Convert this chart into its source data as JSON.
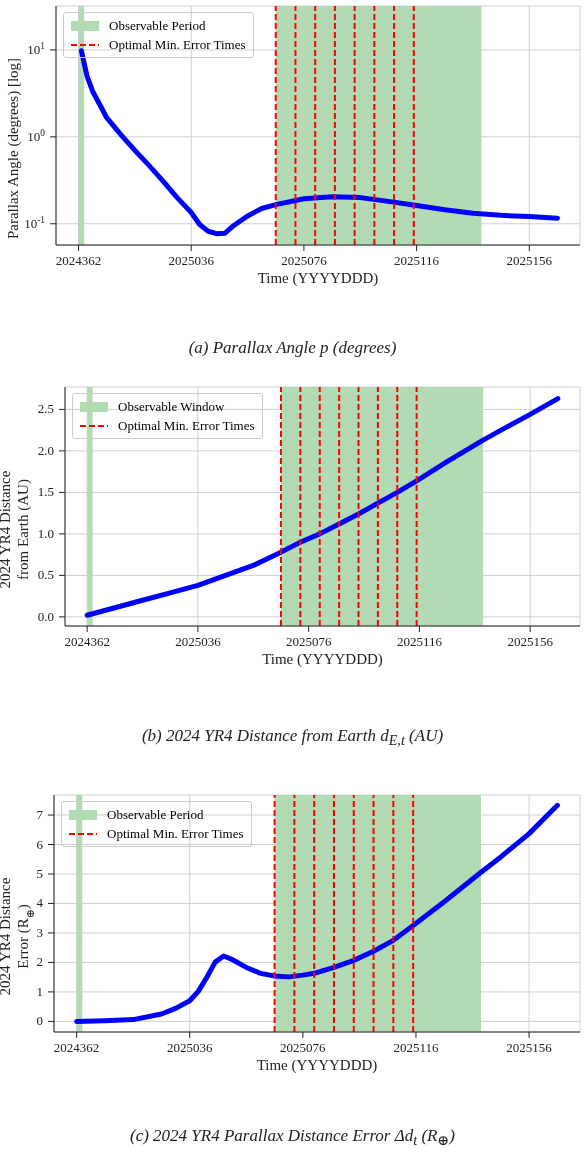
{
  "chart_data": [
    {
      "type": "line",
      "title": "(a) Parallax Angle p (degrees)",
      "xlabel": "Time (YYYYDDD)",
      "ylabel": "Parallax Angle (degrees) [log]",
      "log": true,
      "grid": true,
      "legend": "top left",
      "xlim": [
        "2024-12-19",
        "2025-06-23"
      ],
      "xticks": [
        {
          "value": "2024-12-27",
          "label": "2024362"
        },
        {
          "value": "2025-02-05",
          "label": "2025036"
        },
        {
          "value": "2025-03-17",
          "label": "2025076"
        },
        {
          "value": "2025-04-26",
          "label": "2025116"
        },
        {
          "value": "2025-06-05",
          "label": "2025156"
        }
      ],
      "ylim": [
        0.057,
        32
      ],
      "yticks": [
        {
          "value": 0.1,
          "label": "10$^{-1}$"
        },
        {
          "value": 1,
          "label": "10$^{0}$"
        },
        {
          "value": 10,
          "label": "10$^{1}$"
        }
      ],
      "series": [
        {
          "color": "#0000ff",
          "x": [
            "2024-12-28",
            "2024-12-30",
            "2025-01-01",
            "2025-01-06",
            "2025-01-11",
            "2025-01-16",
            "2025-01-21",
            "2025-01-26",
            "2025-01-31",
            "2025-02-05",
            "2025-02-08",
            "2025-02-11",
            "2025-02-14",
            "2025-02-17",
            "2025-02-20",
            "2025-02-25",
            "2025-03-02",
            "2025-03-07",
            "2025-03-17",
            "2025-03-27",
            "2025-04-06",
            "2025-04-16",
            "2025-04-26",
            "2025-05-06",
            "2025-05-16",
            "2025-05-26",
            "2025-06-05",
            "2025-06-15"
          ],
          "values": [
            9.8,
            5.0,
            3.35,
            1.66,
            1.06,
            0.7,
            0.47,
            0.31,
            0.2,
            0.135,
            0.098,
            0.082,
            0.077,
            0.078,
            0.095,
            0.123,
            0.15,
            0.166,
            0.194,
            0.204,
            0.2,
            0.181,
            0.162,
            0.145,
            0.132,
            0.125,
            0.121,
            0.116
          ]
        }
      ],
      "bands": [
        {
          "axis": "x",
          "from": "2024-12-27",
          "to": "2024-12-29",
          "label": "Observable Period",
          "color": "#b3dbb3"
        },
        {
          "axis": "x",
          "from": "2025-03-07",
          "to": "2025-05-19",
          "color": "#b3dbb3"
        }
      ],
      "ref_lines": [
        {
          "axis": "x",
          "value": "2025-03-07",
          "label": "Optimal Min. Error Times",
          "color": "#ff0000",
          "line_style": "dashed"
        },
        {
          "axis": "x",
          "value": "2025-03-14",
          "color": "#ff0000",
          "line_style": "dashed"
        },
        {
          "axis": "x",
          "value": "2025-03-21",
          "color": "#ff0000",
          "line_style": "dashed"
        },
        {
          "axis": "x",
          "value": "2025-03-28",
          "color": "#ff0000",
          "line_style": "dashed"
        },
        {
          "axis": "x",
          "value": "2025-04-04",
          "color": "#ff0000",
          "line_style": "dashed"
        },
        {
          "axis": "x",
          "value": "2025-04-11",
          "color": "#ff0000",
          "line_style": "dashed"
        },
        {
          "axis": "x",
          "value": "2025-04-18",
          "color": "#ff0000",
          "line_style": "dashed"
        },
        {
          "axis": "x",
          "value": "2025-04-25",
          "color": "#ff0000",
          "line_style": "dashed"
        }
      ]
    },
    {
      "type": "line",
      "title": "(b) 2024 YR4 Distance from Earth d$_{E,t}$ (AU)",
      "xlabel": "Time (YYYYDDD)",
      "ylabel": "2024 YR4 Distance from Earth (AU)",
      "grid": true,
      "legend": "top left",
      "xlim": [
        "2024-12-19",
        "2025-06-23"
      ],
      "xticks": [
        {
          "value": "2024-12-27",
          "label": "2024362"
        },
        {
          "value": "2025-02-05",
          "label": "2025036"
        },
        {
          "value": "2025-03-17",
          "label": "2025076"
        },
        {
          "value": "2025-04-26",
          "label": "2025116"
        },
        {
          "value": "2025-06-05",
          "label": "2025156"
        }
      ],
      "ylim": [
        -0.11,
        2.77
      ],
      "yticks": [
        {
          "value": 0,
          "label": "0.0"
        },
        0.5,
        {
          "value": 1,
          "label": "1.0"
        },
        1.5,
        {
          "value": 2,
          "label": "2.0"
        },
        2.5
      ],
      "series": [
        {
          "color": "#0000ff",
          "x": [
            "2024-12-27",
            "2025-01-06",
            "2025-01-16",
            "2025-01-26",
            "2025-02-05",
            "2025-02-15",
            "2025-02-25",
            "2025-03-07",
            "2025-03-14",
            "2025-03-21",
            "2025-03-28",
            "2025-04-04",
            "2025-04-11",
            "2025-04-18",
            "2025-04-25",
            "2025-05-06",
            "2025-05-19",
            "2025-05-26",
            "2025-06-05",
            "2025-06-15"
          ],
          "values": [
            0.02,
            0.11,
            0.2,
            0.29,
            0.38,
            0.5,
            0.62,
            0.78,
            0.9,
            1.0,
            1.12,
            1.24,
            1.37,
            1.5,
            1.64,
            1.87,
            2.13,
            2.26,
            2.44,
            2.63
          ]
        }
      ],
      "bands": [
        {
          "axis": "x",
          "from": "2024-12-27",
          "to": "2024-12-29",
          "label": "Observable Window",
          "color": "#b3dbb3"
        },
        {
          "axis": "x",
          "from": "2025-03-07",
          "to": "2025-05-19",
          "color": "#b3dbb3"
        }
      ],
      "ref_lines": [
        {
          "axis": "x",
          "value": "2025-03-07",
          "label": "Optimal Min. Error Times",
          "color": "#ff0000",
          "line_style": "dashed"
        },
        {
          "axis": "x",
          "value": "2025-03-14",
          "color": "#ff0000",
          "line_style": "dashed"
        },
        {
          "axis": "x",
          "value": "2025-03-21",
          "color": "#ff0000",
          "line_style": "dashed"
        },
        {
          "axis": "x",
          "value": "2025-03-28",
          "color": "#ff0000",
          "line_style": "dashed"
        },
        {
          "axis": "x",
          "value": "2025-04-04",
          "color": "#ff0000",
          "line_style": "dashed"
        },
        {
          "axis": "x",
          "value": "2025-04-11",
          "color": "#ff0000",
          "line_style": "dashed"
        },
        {
          "axis": "x",
          "value": "2025-04-18",
          "color": "#ff0000",
          "line_style": "dashed"
        },
        {
          "axis": "x",
          "value": "2025-04-25",
          "color": "#ff0000",
          "line_style": "dashed"
        }
      ]
    },
    {
      "type": "line",
      "title": "(c) 2024 YR4 Parallax Distance Error Δd$_{t}$ (R$_{⊕}$)",
      "xlabel": "Time (YYYYDDD)",
      "ylabel": "2024 YR4 Distance Error (R$_{⊕}$)",
      "grid": true,
      "legend": "top left",
      "xlim": [
        "2024-12-19",
        "2025-06-23"
      ],
      "xticks": [
        {
          "value": "2024-12-27",
          "label": "2024362"
        },
        {
          "value": "2025-02-05",
          "label": "2025036"
        },
        {
          "value": "2025-03-17",
          "label": "2025076"
        },
        {
          "value": "2025-04-26",
          "label": "2025116"
        },
        {
          "value": "2025-06-05",
          "label": "2025156"
        }
      ],
      "ylim": [
        -0.36,
        7.68
      ],
      "yticks": [
        0,
        1,
        2,
        3,
        4,
        5,
        6,
        7
      ],
      "series": [
        {
          "color": "#0000ff",
          "x": [
            "2024-12-27",
            "2025-01-06",
            "2025-01-16",
            "2025-01-26",
            "2025-01-31",
            "2025-02-05",
            "2025-02-08",
            "2025-02-11",
            "2025-02-14",
            "2025-02-17",
            "2025-02-20",
            "2025-02-25",
            "2025-03-02",
            "2025-03-07",
            "2025-03-12",
            "2025-03-17",
            "2025-03-21",
            "2025-03-28",
            "2025-04-04",
            "2025-04-11",
            "2025-04-18",
            "2025-04-25",
            "2025-05-06",
            "2025-05-19",
            "2025-05-26",
            "2025-06-05",
            "2025-06-15"
          ],
          "values": [
            0.0,
            0.02,
            0.06,
            0.25,
            0.44,
            0.7,
            1.02,
            1.49,
            2.01,
            2.22,
            2.1,
            1.83,
            1.63,
            1.54,
            1.51,
            1.57,
            1.63,
            1.83,
            2.07,
            2.38,
            2.75,
            3.25,
            4.06,
            5.06,
            5.58,
            6.37,
            7.33
          ]
        }
      ],
      "bands": [
        {
          "axis": "x",
          "from": "2024-12-27",
          "to": "2024-12-29",
          "label": "Observable Period",
          "color": "#b3dbb3"
        },
        {
          "axis": "x",
          "from": "2025-03-07",
          "to": "2025-05-19",
          "color": "#b3dbb3"
        }
      ],
      "ref_lines": [
        {
          "axis": "x",
          "value": "2025-03-07",
          "label": "Optimal Min. Error Times",
          "color": "#ff0000",
          "line_style": "dashed"
        },
        {
          "axis": "x",
          "value": "2025-03-14",
          "color": "#ff0000",
          "line_style": "dashed"
        },
        {
          "axis": "x",
          "value": "2025-03-21",
          "color": "#ff0000",
          "line_style": "dashed"
        },
        {
          "axis": "x",
          "value": "2025-03-28",
          "color": "#ff0000",
          "line_style": "dashed"
        },
        {
          "axis": "x",
          "value": "2025-04-04",
          "color": "#ff0000",
          "line_style": "dashed"
        },
        {
          "axis": "x",
          "value": "2025-04-11",
          "color": "#ff0000",
          "line_style": "dashed"
        },
        {
          "axis": "x",
          "value": "2025-04-18",
          "color": "#ff0000",
          "line_style": "dashed"
        },
        {
          "axis": "x",
          "value": "2025-04-25",
          "color": "#ff0000",
          "line_style": "dashed"
        }
      ]
    }
  ]
}
